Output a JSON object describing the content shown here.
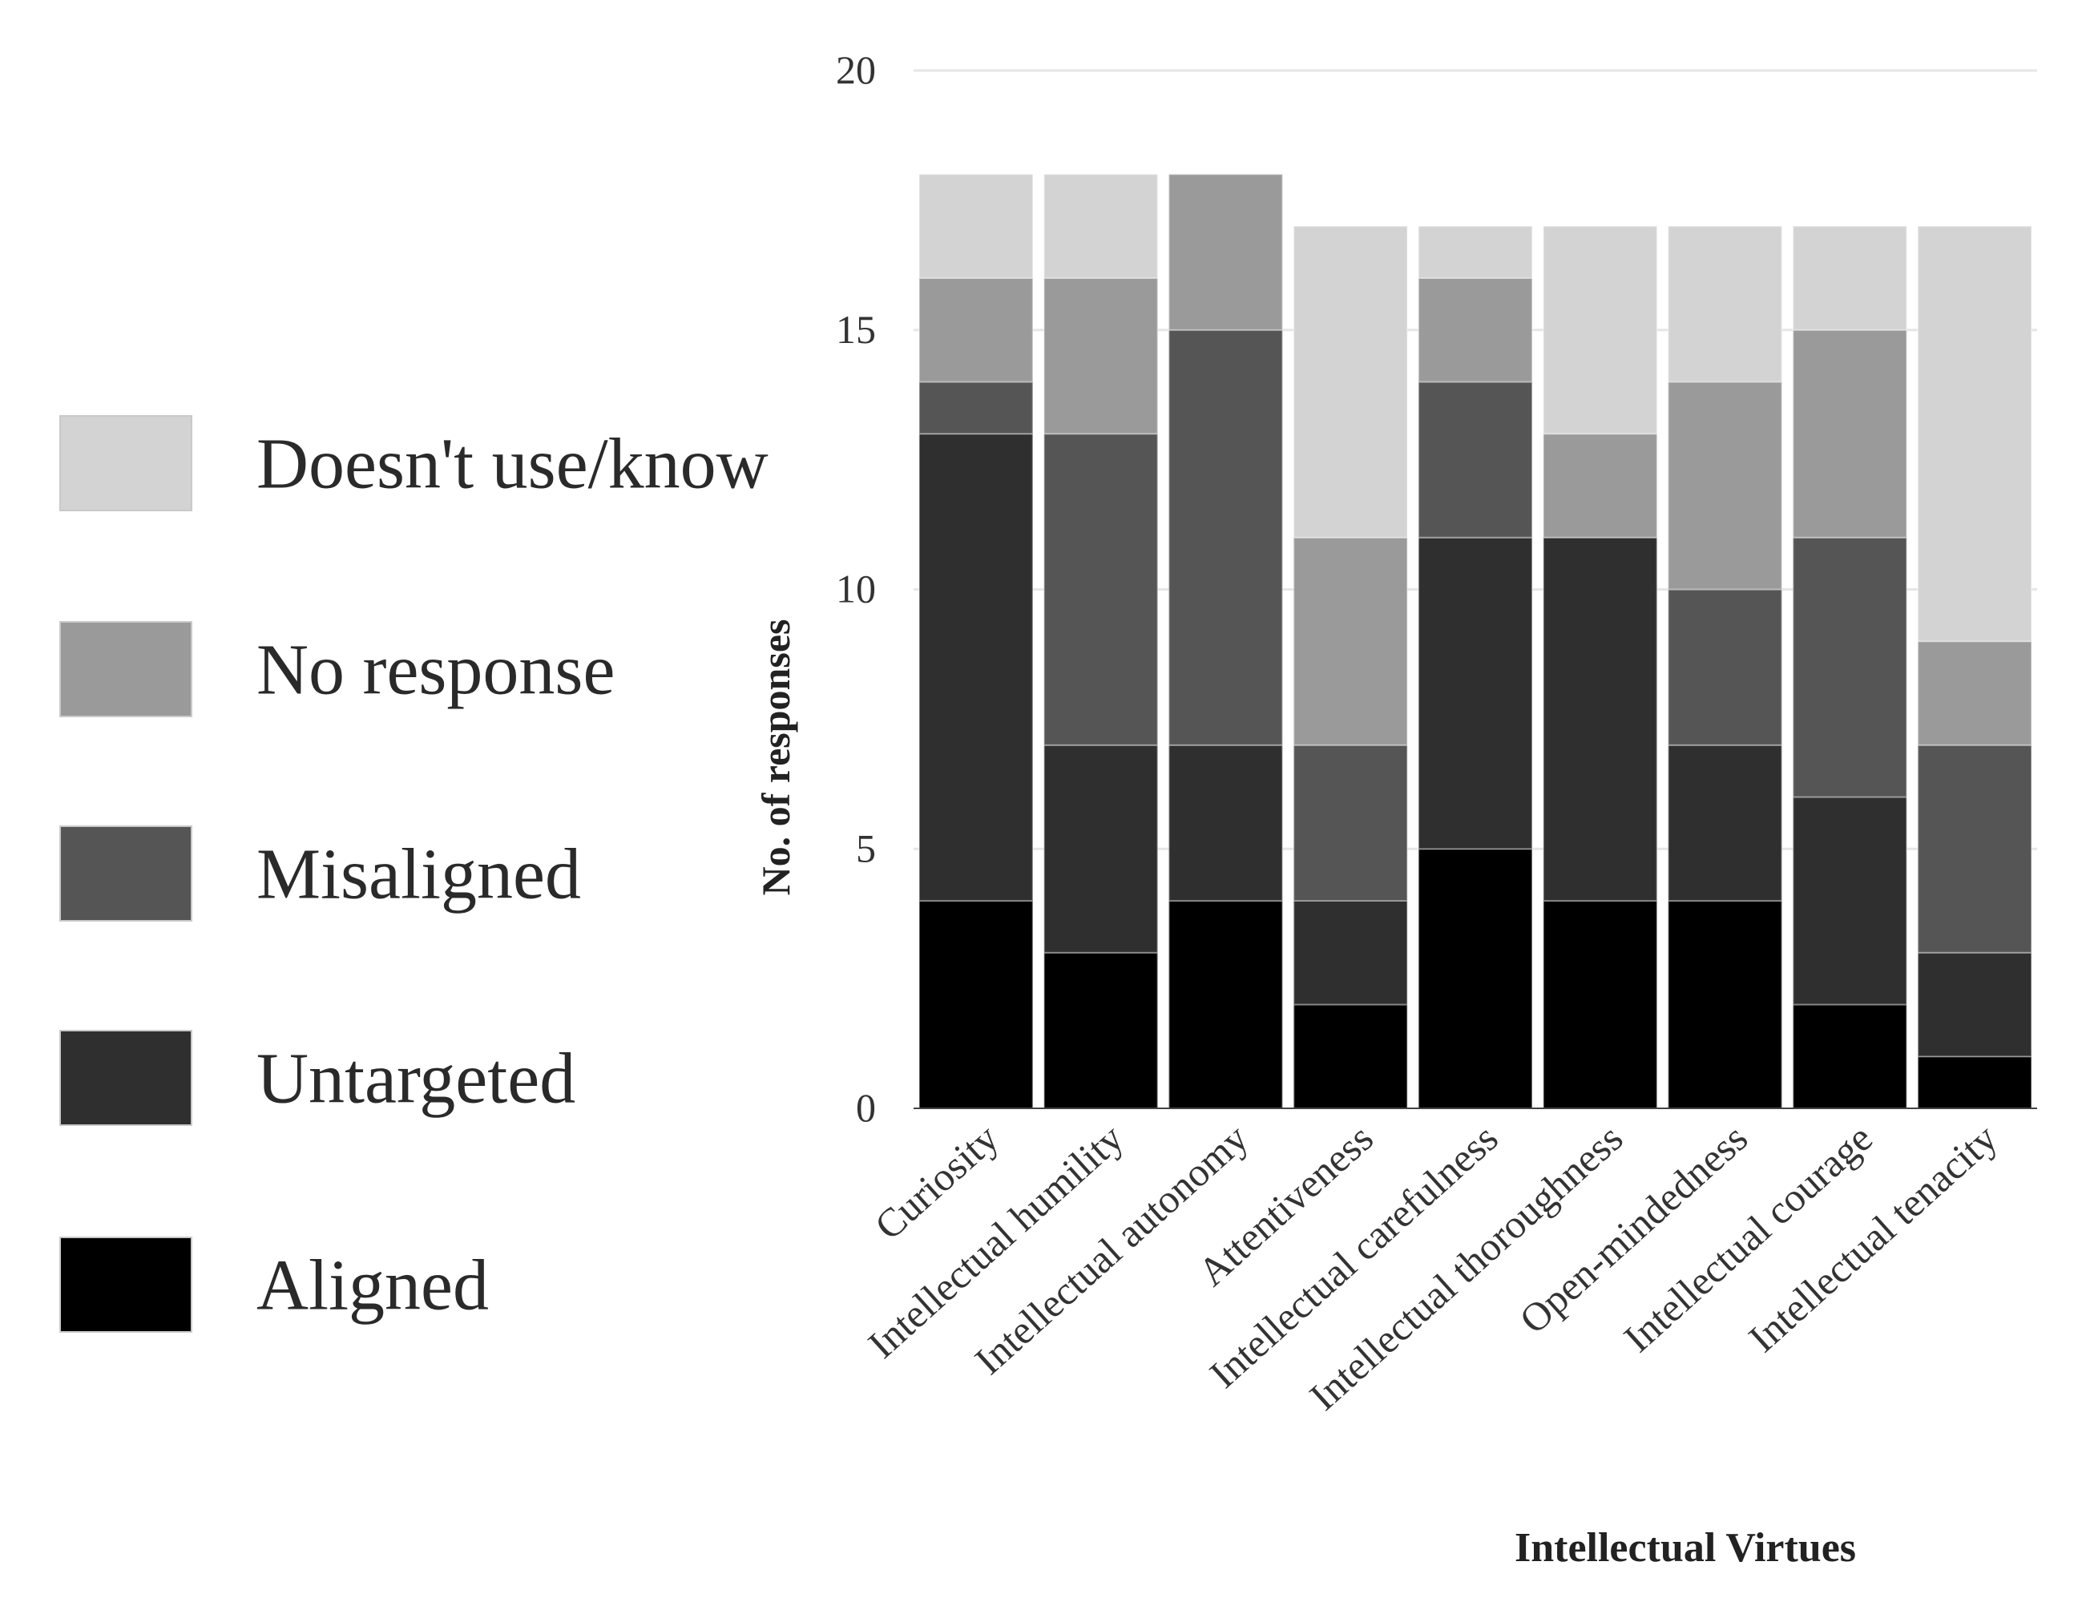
{
  "chart_data": {
    "type": "bar",
    "stacked": true,
    "xlabel": "Intellectual Virtues",
    "ylabel": "No. of responses",
    "ylim": [
      0,
      20
    ],
    "yticks": [
      0,
      5,
      10,
      15,
      20
    ],
    "legend_position": "left",
    "categories": [
      "Curiosity",
      "Intellectual humility",
      "Intellectual autonomy",
      "Attentiveness",
      "Intellectual carefulness",
      "Intellectual thoroughness",
      "Open-mindedness",
      "Intellectual courage",
      "Intellectual tenacity"
    ],
    "series": [
      {
        "name": "Aligned",
        "color": "#000000",
        "values": [
          4,
          3,
          4,
          2,
          5,
          4,
          4,
          2,
          1
        ]
      },
      {
        "name": "Untargeted",
        "color": "#2f2f2f",
        "values": [
          9,
          4,
          3,
          2,
          6,
          7,
          3,
          4,
          2
        ]
      },
      {
        "name": "Misaligned",
        "color": "#555555",
        "values": [
          1,
          6,
          8,
          3,
          3,
          0,
          3,
          5,
          4
        ]
      },
      {
        "name": "No response",
        "color": "#9a9a9a",
        "values": [
          2,
          3,
          3,
          4,
          2,
          2,
          4,
          4,
          2
        ]
      },
      {
        "name": "Doesn't use/know",
        "color": "#d3d3d3",
        "values": [
          2,
          2,
          0,
          6,
          1,
          4,
          3,
          2,
          8
        ]
      }
    ],
    "legend_order": [
      "Doesn't use/know",
      "No response",
      "Misaligned",
      "Untargeted",
      "Aligned"
    ]
  }
}
